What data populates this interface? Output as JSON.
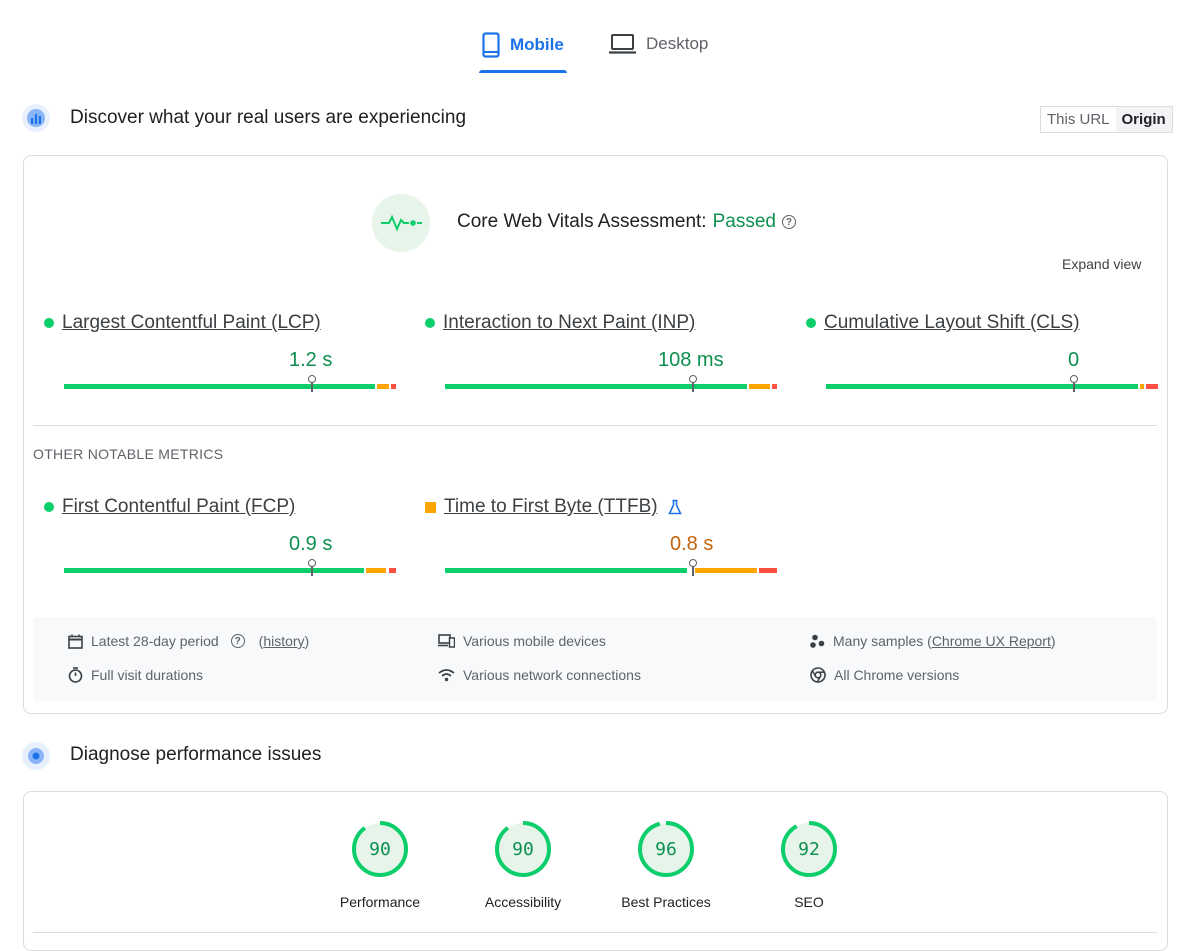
{
  "tabs": [
    {
      "label": "Mobile",
      "icon": "phone-icon",
      "active": true
    },
    {
      "label": "Desktop",
      "icon": "laptop-icon",
      "active": false
    }
  ],
  "field_section": {
    "title": "Discover what your real users are experiencing",
    "toggle": {
      "this_url": "This URL",
      "origin": "Origin",
      "selected": "Origin"
    }
  },
  "assessment": {
    "label": "Core Web Vitals Assessment:",
    "status": "Passed",
    "expand_label": "Expand view"
  },
  "core_metrics": [
    {
      "name": "Largest Contentful Paint (LCP)",
      "value": "1.2 s",
      "rating": "good"
    },
    {
      "name": "Interaction to Next Paint (INP)",
      "value": "108 ms",
      "rating": "good"
    },
    {
      "name": "Cumulative Layout Shift (CLS)",
      "value": "0",
      "rating": "good"
    }
  ],
  "other_metrics_label": "OTHER NOTABLE METRICS",
  "other_metrics": [
    {
      "name": "First Contentful Paint (FCP)",
      "value": "0.9 s",
      "rating": "good"
    },
    {
      "name": "Time to First Byte (TTFB)",
      "value": "0.8 s",
      "rating": "needs-improvement",
      "experimental": true
    }
  ],
  "info": {
    "period": "Latest 28-day period",
    "history_link": "history",
    "durations": "Full visit durations",
    "devices": "Various mobile devices",
    "network": "Various network connections",
    "samples_prefix": "Many samples (",
    "samples_link": "Chrome UX Report",
    "samples_suffix": ")",
    "versions": "All Chrome versions"
  },
  "diagnose_section": {
    "title": "Diagnose performance issues"
  },
  "scores": [
    {
      "label": "Performance",
      "value": "90",
      "fraction": 0.9
    },
    {
      "label": "Accessibility",
      "value": "90",
      "fraction": 0.9
    },
    {
      "label": "Best Practices",
      "value": "96",
      "fraction": 0.96
    },
    {
      "label": "SEO",
      "value": "92",
      "fraction": 0.92
    }
  ],
  "colors": {
    "accent": "#1a73e8",
    "good": "#0cce6b",
    "good_text": "#0d904f",
    "needs_improvement": "#ffa400",
    "poor": "#ff4e42"
  }
}
